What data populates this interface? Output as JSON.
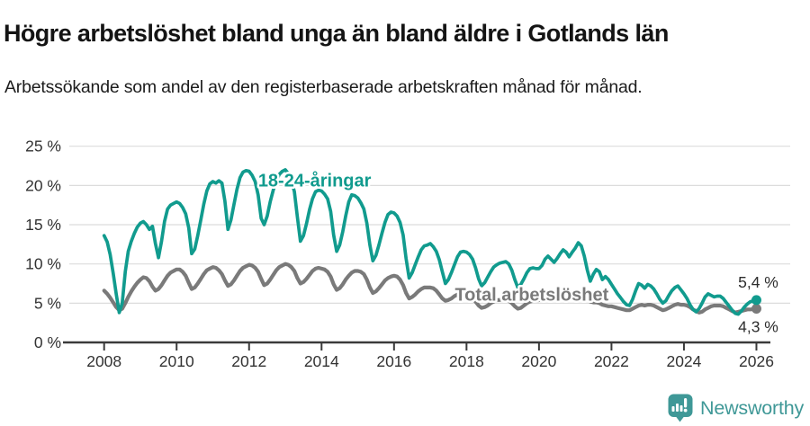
{
  "title": "Högre arbetslöshet bland unga än bland äldre i Gotlands län",
  "subtitle": "Arbetssökande som andel av den registerbaserade arbetskraften månad för månad.",
  "footer": {
    "brand": "Newsworthy"
  },
  "colors": {
    "accent_teal": "#119B8E",
    "line_gray": "#7A7A7A",
    "logo_teal": "#3F9897",
    "axis_text": "#333333",
    "gridline": "#DCDCDC",
    "axis_line": "#3A3A3A"
  },
  "chart_data": {
    "type": "line",
    "x_start_year": 2008,
    "points_per_year": 12,
    "ylim": [
      0,
      25
    ],
    "y_ticks": [
      0,
      5,
      10,
      15,
      20,
      25
    ],
    "y_tick_labels": [
      "0 %",
      "5 %",
      "10 %",
      "15 %",
      "20 %",
      "25 %"
    ],
    "x_ticks": [
      2008,
      2010,
      2012,
      2014,
      2016,
      2018,
      2020,
      2022,
      2024,
      2026
    ],
    "x_tick_labels": [
      "2008",
      "2010",
      "2012",
      "2014",
      "2016",
      "2018",
      "2020",
      "2022",
      "2024",
      "2026"
    ],
    "grid": true,
    "legend": "inline-labels",
    "series": [
      {
        "name": "Total arbetslöshet",
        "color": "#7A7A7A",
        "end_label": "4,3 %",
        "end_label_position": "below",
        "label_pos": {
          "year": 2017.68,
          "pct": 6.15
        },
        "values": [
          6.6,
          6.2,
          5.7,
          5.1,
          4.5,
          4.1,
          4.3,
          5.0,
          5.8,
          6.5,
          7.1,
          7.6,
          8.0,
          8.3,
          8.2,
          7.8,
          7.1,
          6.6,
          6.8,
          7.3,
          7.9,
          8.5,
          8.9,
          9.1,
          9.3,
          9.3,
          9.0,
          8.5,
          7.6,
          6.8,
          7.0,
          7.5,
          8.1,
          8.7,
          9.2,
          9.4,
          9.6,
          9.5,
          9.2,
          8.7,
          7.9,
          7.2,
          7.4,
          7.9,
          8.5,
          9.1,
          9.5,
          9.7,
          9.9,
          9.8,
          9.5,
          9.0,
          8.1,
          7.3,
          7.5,
          8.0,
          8.6,
          9.2,
          9.6,
          9.8,
          10.0,
          9.9,
          9.6,
          9.1,
          8.2,
          7.5,
          7.7,
          8.1,
          8.6,
          9.1,
          9.4,
          9.5,
          9.4,
          9.3,
          9.0,
          8.4,
          7.4,
          6.7,
          6.9,
          7.4,
          8.0,
          8.5,
          8.9,
          9.1,
          9.1,
          9.0,
          8.7,
          8.0,
          7.0,
          6.3,
          6.5,
          6.9,
          7.4,
          7.9,
          8.2,
          8.4,
          8.5,
          8.4,
          8.0,
          7.3,
          6.3,
          5.6,
          5.8,
          6.1,
          6.5,
          6.8,
          7.0,
          7.0,
          7.0,
          6.9,
          6.6,
          6.1,
          5.6,
          5.3,
          5.4,
          5.6,
          5.9,
          6.1,
          6.2,
          6.1,
          6.0,
          5.9,
          5.6,
          5.2,
          4.7,
          4.4,
          4.5,
          4.7,
          5.0,
          5.2,
          5.4,
          5.4,
          5.6,
          5.5,
          5.3,
          5.0,
          4.6,
          4.3,
          4.4,
          4.7,
          5.0,
          5.2,
          5.3,
          5.3,
          5.4,
          5.5,
          5.9,
          6.2,
          6.3,
          6.3,
          6.2,
          6.2,
          6.1,
          6.1,
          6.0,
          6.0,
          6.1,
          6.1,
          6.0,
          5.8,
          5.5,
          5.2,
          5.1,
          5.1,
          5.0,
          4.8,
          4.7,
          4.6,
          4.6,
          4.5,
          4.4,
          4.3,
          4.2,
          4.1,
          4.1,
          4.3,
          4.5,
          4.7,
          4.8,
          4.7,
          4.8,
          4.8,
          4.7,
          4.5,
          4.3,
          4.1,
          4.2,
          4.4,
          4.6,
          4.8,
          4.9,
          4.8,
          4.8,
          4.7,
          4.5,
          4.2,
          4.0,
          3.8,
          3.9,
          4.2,
          4.4,
          4.6,
          4.7,
          4.7,
          4.7,
          4.6,
          4.4,
          4.2,
          4.0,
          3.8,
          3.9,
          4.0,
          4.1,
          4.2,
          4.2,
          4.25,
          4.3
        ]
      },
      {
        "name": "18-24-åringar",
        "color": "#119B8E",
        "end_label": "5,4 %",
        "end_label_position": "above",
        "label_pos": {
          "year": 2012.25,
          "pct": 20.65
        },
        "values": [
          13.6,
          12.8,
          11.2,
          8.8,
          6.2,
          3.8,
          5.0,
          9.0,
          11.6,
          12.9,
          13.9,
          14.7,
          15.2,
          15.4,
          15.0,
          14.4,
          14.8,
          12.6,
          10.8,
          12.9,
          15.4,
          17.0,
          17.5,
          17.7,
          17.9,
          17.7,
          17.2,
          16.4,
          14.6,
          11.3,
          11.9,
          13.6,
          15.6,
          17.6,
          19.3,
          20.2,
          20.5,
          20.3,
          20.6,
          20.3,
          18.0,
          14.4,
          15.6,
          17.6,
          19.5,
          21.0,
          21.7,
          21.9,
          21.8,
          21.3,
          20.5,
          18.8,
          15.8,
          15.0,
          16.1,
          17.9,
          19.4,
          20.6,
          21.4,
          21.8,
          22.0,
          21.5,
          20.7,
          19.2,
          16.0,
          12.9,
          13.6,
          15.1,
          16.9,
          18.3,
          19.2,
          19.4,
          19.3,
          18.9,
          18.3,
          16.7,
          13.7,
          11.6,
          12.4,
          14.1,
          16.1,
          17.9,
          18.8,
          18.7,
          18.4,
          17.8,
          17.0,
          15.2,
          12.4,
          10.4,
          11.1,
          12.4,
          13.9,
          15.3,
          16.3,
          16.6,
          16.5,
          16.1,
          15.3,
          13.7,
          10.7,
          8.2,
          8.9,
          9.9,
          10.9,
          11.8,
          12.3,
          12.4,
          12.6,
          12.2,
          11.6,
          10.5,
          9.0,
          7.5,
          8.0,
          8.9,
          9.9,
          10.9,
          11.5,
          11.6,
          11.5,
          11.2,
          10.6,
          9.5,
          8.1,
          7.2,
          7.6,
          8.3,
          9.0,
          9.6,
          9.9,
          10.1,
          10.2,
          10.3,
          10.0,
          9.2,
          8.0,
          7.0,
          7.4,
          8.1,
          8.9,
          9.4,
          9.5,
          9.4,
          9.4,
          9.8,
          10.6,
          11.0,
          10.6,
          10.2,
          10.7,
          11.3,
          11.8,
          11.5,
          10.9,
          11.5,
          12.0,
          12.7,
          12.3,
          11.0,
          9.2,
          7.8,
          8.7,
          9.3,
          9.0,
          8.0,
          8.4,
          8.0,
          7.4,
          6.8,
          6.2,
          5.7,
          5.2,
          4.8,
          4.7,
          5.5,
          6.6,
          7.5,
          7.3,
          6.9,
          7.4,
          7.2,
          6.8,
          6.2,
          5.5,
          5.0,
          5.3,
          6.0,
          6.6,
          7.0,
          7.2,
          6.7,
          6.2,
          5.6,
          4.8,
          4.2,
          3.9,
          4.3,
          5.0,
          5.8,
          6.2,
          6.0,
          5.8,
          5.9,
          5.9,
          5.6,
          5.1,
          4.6,
          4.1,
          3.7,
          3.6,
          4.0,
          4.5,
          4.9,
          5.2,
          5.3,
          5.4
        ]
      }
    ]
  }
}
